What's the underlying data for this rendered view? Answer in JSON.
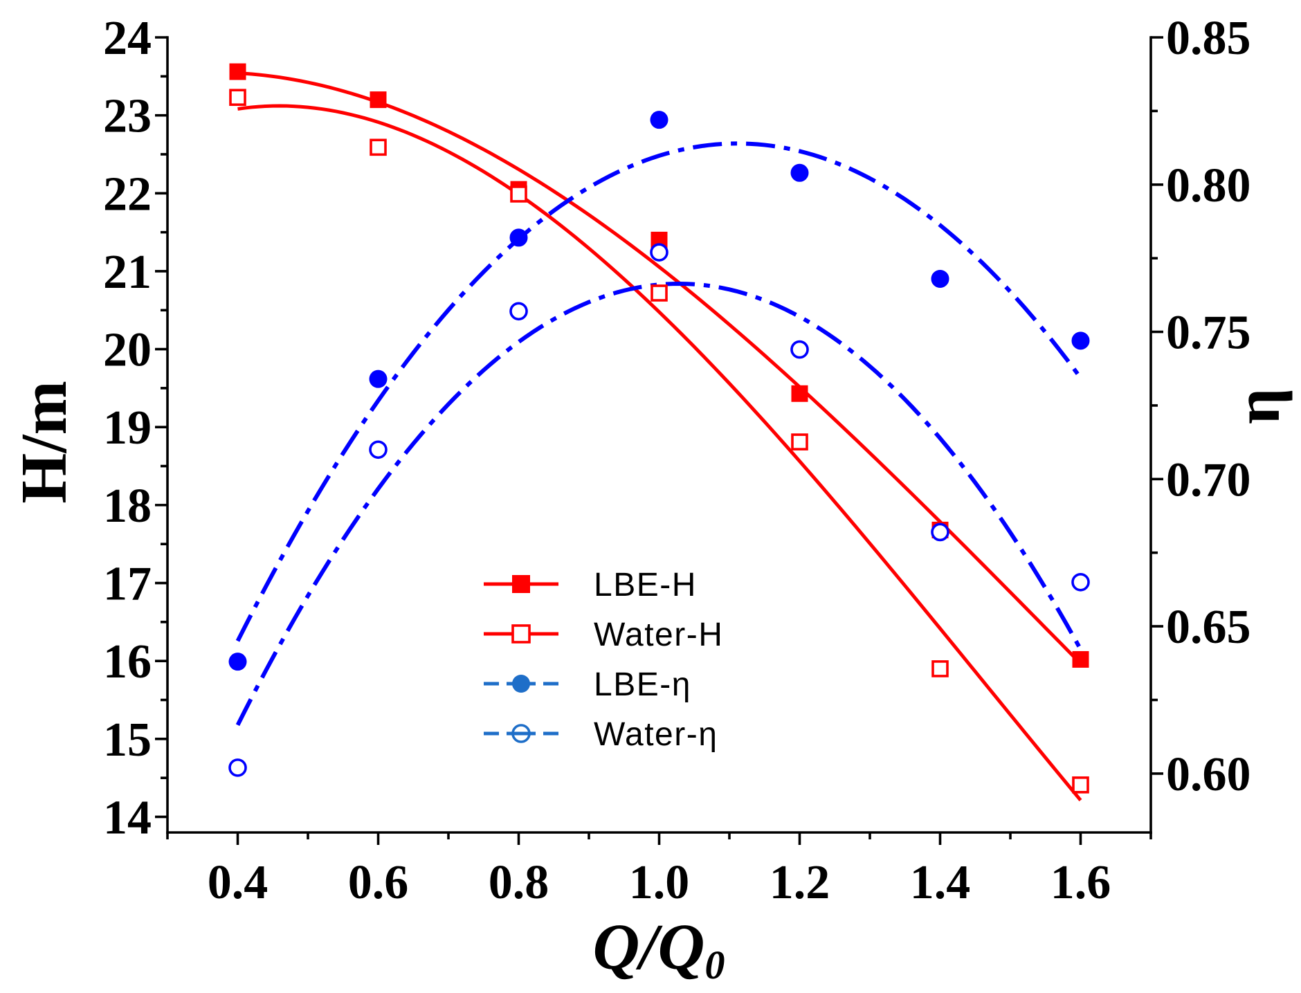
{
  "chart_data": {
    "type": "line",
    "xlabel": "Q/Q",
    "xlabel_subscript": "0",
    "ylabel": "H/m",
    "y2label": "η",
    "xlim": [
      0.3,
      1.7
    ],
    "ylim": [
      13.8,
      24.0
    ],
    "y2lim": [
      0.58,
      0.85
    ],
    "xticks": [
      0.4,
      0.6,
      0.8,
      1.0,
      1.2,
      1.4,
      1.6
    ],
    "xtick_labels": [
      "0.4",
      "0.6",
      "0.8",
      "1.0",
      "1.2",
      "1.4",
      "1.6"
    ],
    "yticks": [
      14,
      15,
      16,
      17,
      18,
      19,
      20,
      21,
      22,
      23,
      24
    ],
    "ytick_labels": [
      "14",
      "15",
      "16",
      "17",
      "18",
      "19",
      "20",
      "21",
      "22",
      "23",
      "24"
    ],
    "y2ticks": [
      0.6,
      0.65,
      0.7,
      0.75,
      0.8,
      0.85
    ],
    "y2tick_labels": [
      "0.60",
      "0.65",
      "0.70",
      "0.75",
      "0.80",
      "0.85"
    ],
    "grid": false,
    "legend_position": "bottom-center",
    "x": [
      0.4,
      0.6,
      0.8,
      1.0,
      1.2,
      1.4,
      1.6
    ],
    "series": [
      {
        "name": "LBE-H",
        "y2": false,
        "filled": true,
        "color": "#ff0000",
        "values": [
          23.56,
          23.2,
          22.05,
          21.4,
          19.43,
          17.68,
          16.02
        ]
      },
      {
        "name": "Water-H",
        "y2": false,
        "filled": false,
        "color": "#ff0000",
        "values": [
          23.23,
          22.59,
          21.99,
          20.72,
          18.81,
          15.9,
          14.41
        ]
      },
      {
        "name": "LBE-η",
        "y2": true,
        "filled": true,
        "color": "#0000ff",
        "values": [
          0.638,
          0.734,
          0.782,
          0.822,
          0.804,
          0.768,
          0.747
        ]
      },
      {
        "name": "Water-η",
        "y2": true,
        "filled": false,
        "color": "#0000ff",
        "values": [
          0.602,
          0.71,
          0.757,
          0.777,
          0.744,
          0.682,
          0.665
        ]
      }
    ]
  },
  "colors": {
    "legend_eta": "#1e6ec8",
    "axis": "#000000",
    "background": "#ffffff"
  }
}
